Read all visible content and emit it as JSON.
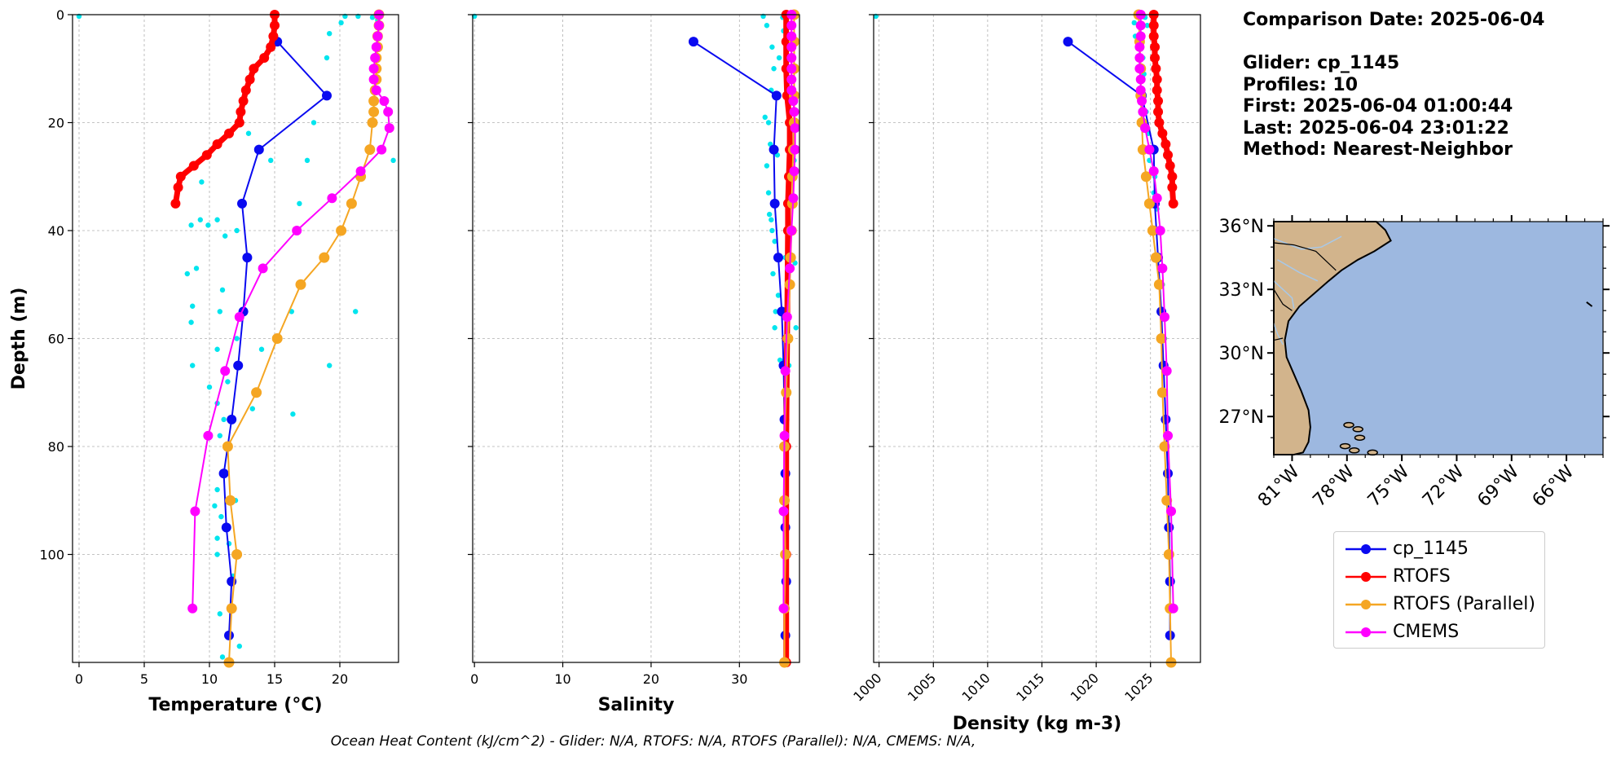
{
  "info": {
    "comparison_date": "Comparison Date: 2025-06-04",
    "glider": "Glider: cp_1145",
    "profiles": "Profiles: 10",
    "first": "First: 2025-06-04 01:00:44",
    "last": "Last: 2025-06-04 23:01:22",
    "method": "Method: Nearest-Neighbor"
  },
  "footer": "Ocean Heat Content (kJ/cm^2) - Glider: N/A,  RTOFS: N/A,  RTOFS (Parallel): N/A,  CMEMS: N/A,",
  "colors": {
    "glider": "#0a0af0",
    "rtofs": "#ff0000",
    "rtofs_parallel": "#f5a623",
    "cmems": "#ff00ff",
    "scatter": "#00e5ee",
    "land": "#d2b48c",
    "ocean": "#9db8e0",
    "rivers": "#a8c8e8"
  },
  "legend": {
    "items": [
      {
        "key": "glider",
        "label": "cp_1145"
      },
      {
        "key": "rtofs",
        "label": "RTOFS"
      },
      {
        "key": "rtofs_parallel",
        "label": "RTOFS (Parallel)"
      },
      {
        "key": "cmems",
        "label": "CMEMS"
      }
    ]
  },
  "chart_data": [
    {
      "type": "line",
      "panel": "temperature",
      "xlabel": "Temperature (°C)",
      "ylabel": "Depth (m)",
      "xlim": [
        -0.5,
        24.5
      ],
      "ylim": [
        120,
        0
      ],
      "xticks": [
        0,
        5,
        10,
        15,
        20
      ],
      "yticks": [
        0,
        20,
        40,
        60,
        80,
        100
      ],
      "grid": true,
      "series": [
        {
          "name": "cp_1145",
          "key": "glider",
          "depth": [
            5,
            15,
            25,
            35,
            45,
            55,
            65,
            75,
            85,
            95,
            105,
            115
          ],
          "values": [
            15.2,
            19.0,
            13.8,
            12.5,
            12.9,
            12.6,
            12.2,
            11.7,
            11.1,
            11.3,
            11.7,
            11.5
          ]
        },
        {
          "name": "RTOFS",
          "key": "rtofs",
          "depth": [
            0,
            2,
            4,
            6,
            8,
            10,
            12,
            14,
            16,
            18,
            20,
            22,
            24,
            26,
            28,
            30,
            32,
            35
          ],
          "values": [
            15.0,
            15.0,
            14.9,
            14.7,
            14.2,
            13.4,
            13.1,
            12.8,
            12.6,
            12.4,
            12.3,
            11.5,
            10.6,
            9.8,
            8.8,
            7.8,
            7.6,
            7.4
          ]
        },
        {
          "name": "RTOFS (Parallel)",
          "key": "rtofs_parallel",
          "depth": [
            0,
            2,
            4,
            6,
            8,
            10,
            12,
            14,
            16,
            18,
            20,
            25,
            30,
            35,
            40,
            45,
            50,
            60,
            70,
            80,
            90,
            100,
            110,
            120
          ],
          "values": [
            23.0,
            23.0,
            22.9,
            22.9,
            22.8,
            22.8,
            22.8,
            22.7,
            22.6,
            22.6,
            22.5,
            22.3,
            21.6,
            20.9,
            20.1,
            18.8,
            17.0,
            15.2,
            13.6,
            11.4,
            11.6,
            12.1,
            11.7,
            11.5
          ]
        },
        {
          "name": "CMEMS",
          "key": "cmems",
          "depth": [
            0,
            2,
            4,
            6,
            8,
            10,
            12,
            14,
            16,
            18,
            21,
            25,
            29,
            34,
            40,
            47,
            56,
            66,
            78,
            92,
            110
          ],
          "values": [
            23.0,
            23.0,
            22.9,
            22.8,
            22.7,
            22.6,
            22.6,
            22.8,
            23.4,
            23.7,
            23.8,
            23.2,
            21.6,
            19.4,
            16.7,
            14.1,
            12.3,
            11.2,
            9.9,
            8.9,
            8.7
          ]
        }
      ],
      "scatter": {
        "key": "scatter",
        "points": [
          [
            0.0,
            0.3
          ],
          [
            20.4,
            0.3
          ],
          [
            21.4,
            0.3
          ],
          [
            22.5,
            0.5
          ],
          [
            19.2,
            3.5
          ],
          [
            20.1,
            1.5
          ],
          [
            22.9,
            1.0
          ],
          [
            19.0,
            8.0
          ],
          [
            22.8,
            4.0
          ],
          [
            18.0,
            20.0
          ],
          [
            13.0,
            22.0
          ],
          [
            10.5,
            24.0
          ],
          [
            14.7,
            27.0
          ],
          [
            24.1,
            27.0
          ],
          [
            16.9,
            35.0
          ],
          [
            17.5,
            27.0
          ],
          [
            9.4,
            31.0
          ],
          [
            8.6,
            39.0
          ],
          [
            9.3,
            38.0
          ],
          [
            9.9,
            39.0
          ],
          [
            10.6,
            38.0
          ],
          [
            12.1,
            40.0
          ],
          [
            11.2,
            41.0
          ],
          [
            8.3,
            48.0
          ],
          [
            9.0,
            47.0
          ],
          [
            8.7,
            54.0
          ],
          [
            11.0,
            51.0
          ],
          [
            10.8,
            55.0
          ],
          [
            16.3,
            55.0
          ],
          [
            8.6,
            57.0
          ],
          [
            21.2,
            55.0
          ],
          [
            12.1,
            60.0
          ],
          [
            10.6,
            62.0
          ],
          [
            8.7,
            65.0
          ],
          [
            14.0,
            62.0
          ],
          [
            19.2,
            65.0
          ],
          [
            11.4,
            68.0
          ],
          [
            10.0,
            69.0
          ],
          [
            10.6,
            72.0
          ],
          [
            13.3,
            73.0
          ],
          [
            16.4,
            74.0
          ],
          [
            11.1,
            75.0
          ],
          [
            10.8,
            78.0
          ],
          [
            11.2,
            85.0
          ],
          [
            10.6,
            88.0
          ],
          [
            11.6,
            90.0
          ],
          [
            10.4,
            91.0
          ],
          [
            10.9,
            93.0
          ],
          [
            12.0,
            90.0
          ],
          [
            10.6,
            97.0
          ],
          [
            11.5,
            98.0
          ],
          [
            10.6,
            100.0
          ],
          [
            11.8,
            104.0
          ],
          [
            10.8,
            111.0
          ],
          [
            12.3,
            117.0
          ],
          [
            11.0,
            119.0
          ]
        ]
      }
    },
    {
      "type": "line",
      "panel": "salinity",
      "xlabel": "Salinity",
      "xlim": [
        -0.2,
        36.8
      ],
      "ylim": [
        120,
        0
      ],
      "xticks": [
        0,
        10,
        20,
        30
      ],
      "yticks": [
        0,
        20,
        40,
        60,
        80,
        100
      ],
      "grid": true,
      "series": [
        {
          "name": "cp_1145",
          "key": "glider",
          "depth": [
            5,
            15,
            25,
            35,
            45,
            55,
            65,
            75,
            85,
            95,
            105,
            115
          ],
          "values": [
            24.8,
            34.2,
            33.9,
            34.0,
            34.4,
            34.8,
            35.0,
            35.1,
            35.2,
            35.2,
            35.3,
            35.2
          ]
        },
        {
          "name": "RTOFS",
          "key": "rtofs",
          "depth": [
            0,
            5,
            10,
            15,
            20,
            25,
            30,
            35,
            40,
            60,
            80,
            100,
            120
          ],
          "values": [
            35.3,
            35.3,
            35.3,
            35.4,
            35.7,
            35.7,
            35.6,
            35.5,
            35.5,
            35.4,
            35.3,
            35.3,
            35.3
          ]
        },
        {
          "name": "RTOFS (Parallel)",
          "key": "rtofs_parallel",
          "depth": [
            0,
            5,
            10,
            15,
            20,
            25,
            30,
            35,
            40,
            45,
            50,
            60,
            70,
            80,
            90,
            100,
            110,
            120
          ],
          "values": [
            36.2,
            36.2,
            36.2,
            36.2,
            36.2,
            36.1,
            36.0,
            36.0,
            35.9,
            35.8,
            35.7,
            35.5,
            35.3,
            35.1,
            35.1,
            35.2,
            35.1,
            35.1
          ]
        },
        {
          "name": "CMEMS",
          "key": "cmems",
          "depth": [
            0,
            2,
            4,
            6,
            8,
            10,
            12,
            14,
            16,
            18,
            21,
            25,
            29,
            34,
            40,
            47,
            56,
            66,
            78,
            92,
            110
          ],
          "values": [
            35.9,
            35.9,
            35.9,
            35.9,
            35.9,
            35.9,
            35.9,
            35.9,
            36.1,
            36.2,
            36.3,
            36.3,
            36.2,
            36.1,
            35.9,
            35.7,
            35.4,
            35.2,
            35.1,
            35.0,
            35.0
          ]
        }
      ],
      "scatter": {
        "key": "scatter",
        "points": [
          [
            0.0,
            0.3
          ],
          [
            32.7,
            0.3
          ],
          [
            34.9,
            0.5
          ],
          [
            33.1,
            2.0
          ],
          [
            35.0,
            3.0
          ],
          [
            33.7,
            6.0
          ],
          [
            34.5,
            8.0
          ],
          [
            33.9,
            10.0
          ],
          [
            33.6,
            14.0
          ],
          [
            32.9,
            19.0
          ],
          [
            33.3,
            20.0
          ],
          [
            33.5,
            24.0
          ],
          [
            34.3,
            26.0
          ],
          [
            36.2,
            27.0
          ],
          [
            33.1,
            28.0
          ],
          [
            33.3,
            33.0
          ],
          [
            33.4,
            37.0
          ],
          [
            33.6,
            38.0
          ],
          [
            33.7,
            40.0
          ],
          [
            34.0,
            42.0
          ],
          [
            35.2,
            45.0
          ],
          [
            36.3,
            46.0
          ],
          [
            33.8,
            48.0
          ],
          [
            34.4,
            52.0
          ],
          [
            34.1,
            55.0
          ],
          [
            34.0,
            58.0
          ],
          [
            36.4,
            58.0
          ],
          [
            34.6,
            64.0
          ],
          [
            35.6,
            65.0
          ]
        ]
      }
    },
    {
      "type": "line",
      "panel": "density",
      "xlabel": "Density (kg m-3)",
      "xlim": [
        999.5,
        1029.6
      ],
      "ylim": [
        120,
        0
      ],
      "xticks": [
        1000,
        1005,
        1010,
        1015,
        1020,
        1025
      ],
      "yticks": [
        0,
        20,
        40,
        60,
        80,
        100
      ],
      "grid": true,
      "series": [
        {
          "name": "cp_1145",
          "key": "glider",
          "depth": [
            5,
            15,
            25,
            35,
            45,
            55,
            65,
            75,
            85,
            95,
            105,
            115
          ],
          "values": [
            1017.4,
            1024.2,
            1025.3,
            1025.4,
            1025.7,
            1026.0,
            1026.2,
            1026.4,
            1026.6,
            1026.7,
            1026.8,
            1026.8
          ]
        },
        {
          "name": "RTOFS",
          "key": "rtofs",
          "depth": [
            0,
            2,
            4,
            6,
            8,
            10,
            12,
            14,
            16,
            18,
            20,
            22,
            24,
            26,
            28,
            30,
            32,
            35
          ],
          "values": [
            1025.3,
            1025.3,
            1025.3,
            1025.4,
            1025.4,
            1025.5,
            1025.6,
            1025.6,
            1025.7,
            1025.7,
            1025.8,
            1026.1,
            1026.4,
            1026.6,
            1026.8,
            1027.0,
            1027.0,
            1027.1
          ]
        },
        {
          "name": "RTOFS (Parallel)",
          "key": "rtofs_parallel",
          "depth": [
            0,
            5,
            10,
            15,
            20,
            25,
            30,
            35,
            40,
            45,
            50,
            60,
            70,
            80,
            90,
            100,
            110,
            120
          ],
          "values": [
            1023.9,
            1024.0,
            1024.1,
            1024.1,
            1024.2,
            1024.3,
            1024.6,
            1024.9,
            1025.2,
            1025.5,
            1025.8,
            1026.0,
            1026.1,
            1026.3,
            1026.5,
            1026.7,
            1026.8,
            1026.9
          ]
        },
        {
          "name": "CMEMS",
          "key": "cmems",
          "depth": [
            0,
            2,
            4,
            6,
            8,
            10,
            12,
            14,
            16,
            18,
            21,
            25,
            29,
            34,
            40,
            47,
            56,
            66,
            78,
            92,
            110
          ],
          "values": [
            1024.1,
            1024.1,
            1024.1,
            1024.0,
            1024.0,
            1024.0,
            1024.1,
            1024.1,
            1024.2,
            1024.3,
            1024.5,
            1024.9,
            1025.3,
            1025.6,
            1025.9,
            1026.1,
            1026.3,
            1026.5,
            1026.6,
            1026.9,
            1027.1
          ]
        }
      ],
      "scatter": {
        "key": "scatter",
        "points": [
          [
            999.7,
            0.3
          ],
          [
            1023.8,
            0.3
          ],
          [
            1024.5,
            0.5
          ],
          [
            1023.5,
            1.5
          ],
          [
            1024.7,
            2.0
          ],
          [
            1023.6,
            4.0
          ],
          [
            1024.2,
            6.0
          ],
          [
            1024.3,
            8.0
          ],
          [
            1024.4,
            11.0
          ],
          [
            1024.0,
            15.0
          ],
          [
            1024.6,
            18.0
          ],
          [
            1024.8,
            22.0
          ],
          [
            1025.1,
            25.0
          ],
          [
            1024.9,
            27.0
          ],
          [
            1025.4,
            30.0
          ],
          [
            1025.3,
            33.0
          ],
          [
            1025.6,
            36.0
          ],
          [
            1025.7,
            40.0
          ],
          [
            1025.9,
            45.0
          ],
          [
            1026.1,
            50.0
          ],
          [
            1026.2,
            55.0
          ],
          [
            1026.3,
            60.0
          ],
          [
            1026.4,
            65.0
          ]
        ]
      }
    }
  ],
  "inset_map": {
    "lat_ticks": [
      "36°N",
      "33°N",
      "30°N",
      "27°N"
    ],
    "lon_ticks": [
      "81°W",
      "78°W",
      "75°W",
      "72°W",
      "69°W",
      "66°W"
    ],
    "lat_range": [
      25.2,
      36.2
    ],
    "lon_range": [
      -82.0,
      -64.0
    ]
  }
}
